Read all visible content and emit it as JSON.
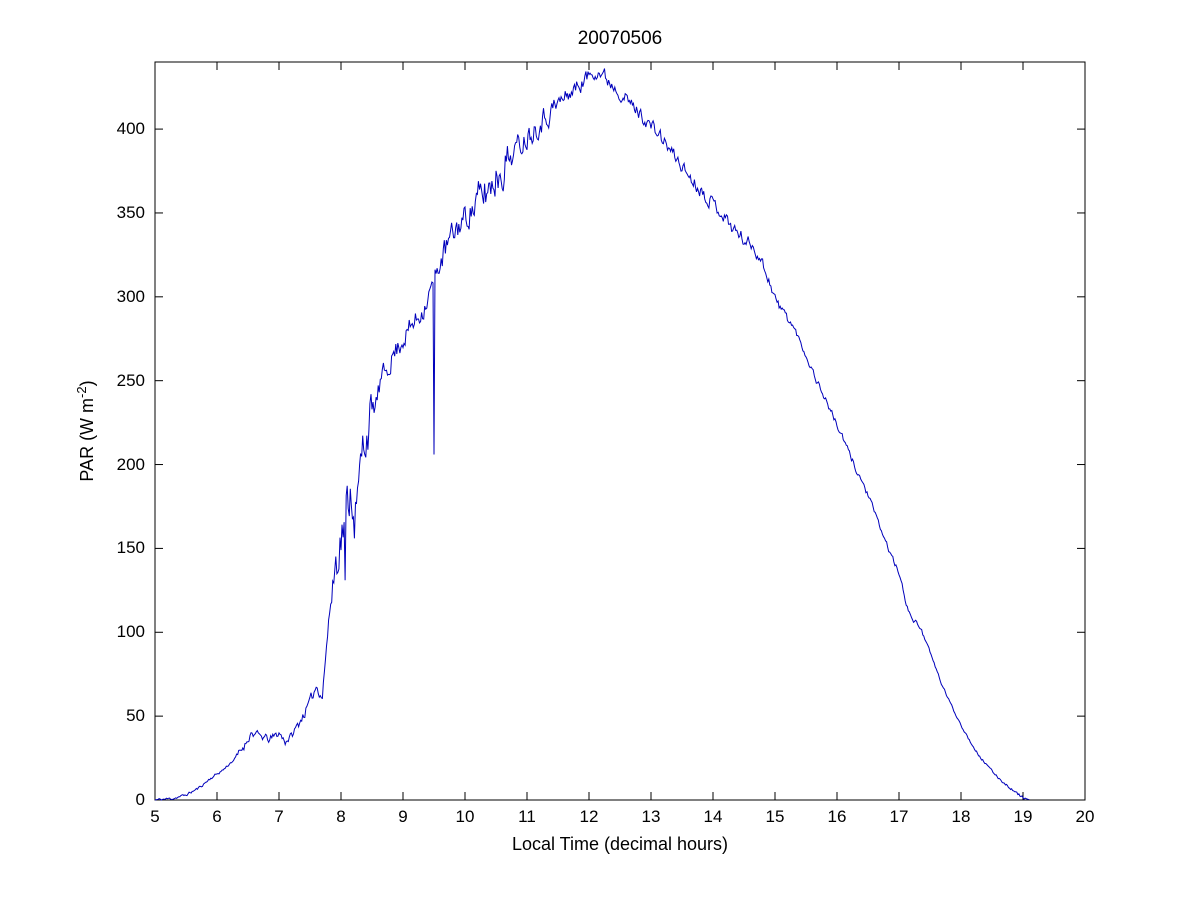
{
  "chart_data": {
    "type": "line",
    "title": "20070506",
    "xlabel": "Local Time (decimal hours)",
    "ylabel_parts": {
      "prefix": "PAR (W m",
      "sup": "-2",
      "suffix": ")"
    },
    "xlim": [
      5,
      20
    ],
    "ylim": [
      0,
      440
    ],
    "xticks": [
      5,
      6,
      7,
      8,
      9,
      10,
      11,
      12,
      13,
      14,
      15,
      16,
      17,
      18,
      19,
      20
    ],
    "yticks": [
      0,
      50,
      100,
      150,
      200,
      250,
      300,
      350,
      400
    ],
    "grid": false,
    "legend": null,
    "line_color": "#0000bb",
    "axis_color": "#000000",
    "background_color": "#ffffff",
    "x_data_range": [
      5.0,
      19.1
    ],
    "envelope": [
      [
        5.0,
        0
      ],
      [
        5.3,
        1
      ],
      [
        5.5,
        3
      ],
      [
        5.7,
        7
      ],
      [
        5.9,
        13
      ],
      [
        6.1,
        18
      ],
      [
        6.3,
        25
      ],
      [
        6.45,
        33
      ],
      [
        6.55,
        40
      ],
      [
        6.7,
        38
      ],
      [
        6.85,
        36
      ],
      [
        7.0,
        40
      ],
      [
        7.1,
        35
      ],
      [
        7.2,
        38
      ],
      [
        7.35,
        48
      ],
      [
        7.5,
        58
      ],
      [
        7.6,
        68
      ],
      [
        7.7,
        62
      ],
      [
        7.75,
        85
      ],
      [
        7.85,
        125
      ],
      [
        7.95,
        150
      ],
      [
        8.05,
        165
      ],
      [
        8.15,
        185
      ],
      [
        8.25,
        172
      ],
      [
        8.35,
        210
      ],
      [
        8.45,
        225
      ],
      [
        8.55,
        235
      ],
      [
        8.65,
        250
      ],
      [
        8.75,
        258
      ],
      [
        8.85,
        266
      ],
      [
        8.95,
        272
      ],
      [
        9.05,
        278
      ],
      [
        9.15,
        283
      ],
      [
        9.25,
        288
      ],
      [
        9.35,
        295
      ],
      [
        9.45,
        305
      ],
      [
        9.55,
        315
      ],
      [
        9.65,
        325
      ],
      [
        9.75,
        333
      ],
      [
        9.85,
        340
      ],
      [
        9.95,
        345
      ],
      [
        10.1,
        352
      ],
      [
        10.3,
        360
      ],
      [
        10.5,
        372
      ],
      [
        10.7,
        382
      ],
      [
        10.9,
        392
      ],
      [
        11.1,
        400
      ],
      [
        11.3,
        408
      ],
      [
        11.5,
        415
      ],
      [
        11.7,
        422
      ],
      [
        11.9,
        428
      ],
      [
        12.0,
        432
      ],
      [
        12.1,
        436
      ],
      [
        12.2,
        433
      ],
      [
        12.35,
        428
      ],
      [
        12.5,
        422
      ],
      [
        12.7,
        414
      ],
      [
        12.9,
        406
      ],
      [
        13.1,
        398
      ],
      [
        13.3,
        388
      ],
      [
        13.5,
        378
      ],
      [
        13.7,
        368
      ],
      [
        13.9,
        360
      ],
      [
        14.1,
        352
      ],
      [
        14.3,
        342
      ],
      [
        14.5,
        334
      ],
      [
        14.65,
        330
      ],
      [
        14.8,
        320
      ],
      [
        14.95,
        305
      ],
      [
        15.05,
        295
      ],
      [
        15.2,
        288
      ],
      [
        15.35,
        278
      ],
      [
        15.5,
        265
      ],
      [
        15.7,
        248
      ],
      [
        15.9,
        232
      ],
      [
        16.1,
        215
      ],
      [
        16.3,
        198
      ],
      [
        16.5,
        182
      ],
      [
        16.7,
        162
      ],
      [
        16.85,
        148
      ],
      [
        17.0,
        135
      ],
      [
        17.1,
        120
      ],
      [
        17.2,
        108
      ],
      [
        17.35,
        103
      ],
      [
        17.5,
        88
      ],
      [
        17.7,
        68
      ],
      [
        17.9,
        52
      ],
      [
        18.1,
        38
      ],
      [
        18.3,
        26
      ],
      [
        18.5,
        17
      ],
      [
        18.7,
        10
      ],
      [
        18.9,
        4
      ],
      [
        19.0,
        1.5
      ],
      [
        19.1,
        0
      ]
    ],
    "noise_regions": [
      [
        5.0,
        6.3,
        1
      ],
      [
        6.3,
        7.3,
        3
      ],
      [
        7.3,
        7.8,
        4
      ],
      [
        7.8,
        8.5,
        18
      ],
      [
        8.5,
        9.4,
        8
      ],
      [
        9.4,
        9.6,
        6
      ],
      [
        9.6,
        10.1,
        10
      ],
      [
        10.1,
        10.7,
        15
      ],
      [
        10.7,
        11.6,
        9
      ],
      [
        11.6,
        12.4,
        6
      ],
      [
        12.4,
        13.2,
        5
      ],
      [
        13.2,
        14.6,
        5
      ],
      [
        14.6,
        15.3,
        4
      ],
      [
        15.3,
        16.5,
        2.5
      ],
      [
        16.5,
        17.4,
        2
      ],
      [
        17.4,
        19.2,
        1
      ]
    ],
    "spikes": [
      [
        8.07,
        131
      ],
      [
        8.22,
        156
      ],
      [
        9.5,
        206
      ]
    ],
    "noise_seed": 11
  }
}
